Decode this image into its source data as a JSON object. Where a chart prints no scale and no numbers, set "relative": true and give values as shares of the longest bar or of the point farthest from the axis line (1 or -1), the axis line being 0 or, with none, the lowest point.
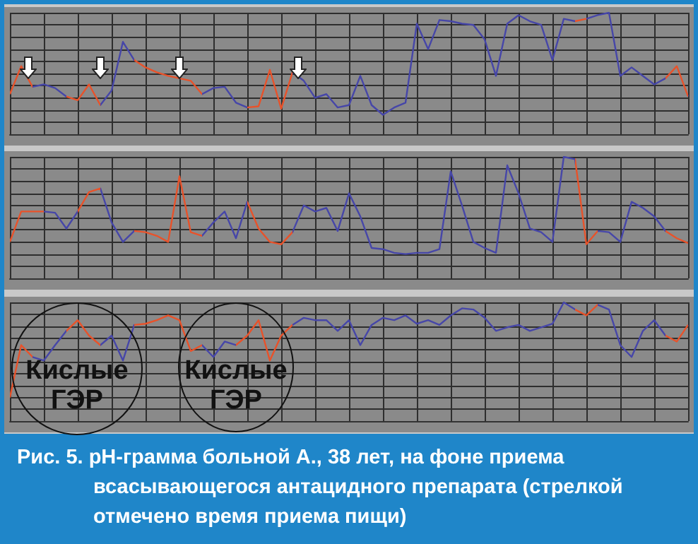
{
  "chart_data": [
    {
      "type": "line",
      "relative": true,
      "grid": true,
      "categories": [
        null,
        null,
        null,
        null,
        null,
        null,
        null,
        null,
        null,
        null,
        null,
        null,
        null,
        null,
        null,
        null,
        null,
        null,
        null,
        null,
        null,
        null,
        null,
        null,
        null,
        null,
        null,
        null,
        null,
        null,
        null,
        null,
        null,
        null,
        null,
        null,
        null,
        null,
        null,
        null,
        null,
        null,
        null,
        null,
        null,
        null,
        null,
        null,
        null,
        null,
        null,
        null,
        null,
        null,
        null,
        null,
        null,
        null,
        null,
        null,
        null
      ],
      "series": [
        {
          "color": "#4646a8",
          "values": [
            0.33,
            0.56,
            0.39,
            0.41,
            0.38,
            0.31,
            0.28,
            0.41,
            0.24,
            0.36,
            0.76,
            0.61,
            0.55,
            0.51,
            0.48,
            0.46,
            0.44,
            0.33,
            0.38,
            0.39,
            0.26,
            0.22,
            0.23,
            0.53,
            0.21,
            0.51,
            0.44,
            0.3,
            0.33,
            0.22,
            0.24,
            0.48,
            0.24,
            0.16,
            0.22,
            0.26,
            0.91,
            0.7,
            0.94,
            0.93,
            0.91,
            0.9,
            0.78,
            0.48,
            0.91,
            0.98,
            0.93,
            0.9,
            0.61,
            0.95,
            0.93,
            0.95,
            0.98,
            1,
            0.48,
            0.55,
            0.48,
            0.41,
            0.46,
            0.56,
            0.31
          ],
          "colors": [
            "#e8522a",
            "#e8522a",
            null,
            null,
            null,
            "#e8522a",
            "#e8522a",
            "#e8522a",
            null,
            null,
            null,
            "#e8522a",
            "#e8522a",
            "#e8522a",
            "#e8522a",
            "#e8522a",
            "#e8522a",
            null,
            null,
            null,
            null,
            "#e8522a",
            "#e8522a",
            "#e8522a",
            "#e8522a",
            null,
            null,
            null,
            null,
            null,
            null,
            null,
            null,
            null,
            null,
            null,
            null,
            null,
            null,
            null,
            null,
            null,
            null,
            null,
            null,
            null,
            null,
            null,
            null,
            null,
            "#e8522a",
            null,
            null,
            null,
            null,
            null,
            null,
            null,
            "#e8522a",
            "#e8522a",
            null
          ]
        }
      ]
    },
    {
      "type": "line",
      "relative": true,
      "grid": true,
      "categories": [
        null,
        null,
        null,
        null,
        null,
        null,
        null,
        null,
        null,
        null,
        null,
        null,
        null,
        null,
        null,
        null,
        null,
        null,
        null,
        null,
        null,
        null,
        null,
        null,
        null,
        null,
        null,
        null,
        null,
        null,
        null,
        null,
        null,
        null,
        null,
        null,
        null,
        null,
        null,
        null,
        null,
        null,
        null,
        null,
        null,
        null,
        null,
        null,
        null,
        null,
        null,
        null,
        null,
        null,
        null,
        null,
        null,
        null,
        null,
        null,
        null
      ],
      "series": [
        {
          "color": "#4646a8",
          "values": [
            0.3,
            0.55,
            0.55,
            0.55,
            0.54,
            0.41,
            0.55,
            0.71,
            0.74,
            0.46,
            0.3,
            0.39,
            0.38,
            0.35,
            0.3,
            0.84,
            0.38,
            0.35,
            0.46,
            0.55,
            0.33,
            0.63,
            0.41,
            0.3,
            0.28,
            0.38,
            0.6,
            0.55,
            0.58,
            0.39,
            0.7,
            0.51,
            0.25,
            0.24,
            0.21,
            0.2,
            0.21,
            0.21,
            0.24,
            0.88,
            0.6,
            0.3,
            0.25,
            0.21,
            0.93,
            0.7,
            0.41,
            0.38,
            0.3,
            1,
            0.98,
            0.28,
            0.39,
            0.38,
            0.3,
            0.63,
            0.58,
            0.51,
            0.39,
            0.33,
            0.29
          ],
          "colors": [
            "#e8522a",
            "#e8522a",
            "#e8522a",
            null,
            null,
            null,
            "#e8522a",
            "#e8522a",
            null,
            null,
            null,
            "#e8522a",
            "#e8522a",
            "#e8522a",
            "#e8522a",
            "#e8522a",
            "#e8522a",
            null,
            null,
            null,
            null,
            "#e8522a",
            "#e8522a",
            "#e8522a",
            "#e8522a",
            null,
            null,
            null,
            null,
            null,
            null,
            null,
            null,
            null,
            null,
            null,
            null,
            null,
            null,
            null,
            null,
            null,
            null,
            null,
            null,
            null,
            null,
            null,
            null,
            null,
            "#e8522a",
            "#e8522a",
            null,
            null,
            null,
            null,
            null,
            null,
            "#e8522a",
            "#e8522a",
            null
          ]
        }
      ]
    },
    {
      "type": "line",
      "relative": true,
      "grid": true,
      "categories": [
        null,
        null,
        null,
        null,
        null,
        null,
        null,
        null,
        null,
        null,
        null,
        null,
        null,
        null,
        null,
        null,
        null,
        null,
        null,
        null,
        null,
        null,
        null,
        null,
        null,
        null,
        null,
        null,
        null,
        null,
        null,
        null,
        null,
        null,
        null,
        null,
        null,
        null,
        null,
        null,
        null,
        null,
        null,
        null,
        null,
        null,
        null,
        null,
        null,
        null,
        null,
        null,
        null,
        null,
        null,
        null,
        null,
        null,
        null,
        null,
        null
      ],
      "series": [
        {
          "color": "#4646a8",
          "values": [
            0.2,
            0.64,
            0.54,
            0.51,
            0.64,
            0.76,
            0.85,
            0.72,
            0.64,
            0.72,
            0.51,
            0.81,
            0.82,
            0.85,
            0.89,
            0.85,
            0.59,
            0.64,
            0.54,
            0.67,
            0.64,
            0.72,
            0.85,
            0.51,
            0.72,
            0.81,
            0.87,
            0.85,
            0.85,
            0.76,
            0.85,
            0.64,
            0.81,
            0.87,
            0.85,
            0.89,
            0.82,
            0.85,
            0.81,
            0.89,
            0.95,
            0.94,
            0.87,
            0.76,
            0.79,
            0.81,
            0.76,
            0.79,
            0.82,
            1,
            0.94,
            0.89,
            0.98,
            0.94,
            0.64,
            0.54,
            0.76,
            0.85,
            0.72,
            0.67,
            0.81
          ],
          "colors": [
            "#e8522a",
            "#e8522a",
            null,
            null,
            null,
            "#e8522a",
            "#e8522a",
            "#e8522a",
            null,
            null,
            null,
            "#e8522a",
            "#e8522a",
            "#e8522a",
            "#e8522a",
            "#e8522a",
            "#e8522a",
            null,
            null,
            null,
            "#e8522a",
            "#e8522a",
            "#e8522a",
            "#e8522a",
            "#e8522a",
            null,
            null,
            null,
            null,
            null,
            null,
            null,
            null,
            null,
            null,
            null,
            null,
            null,
            null,
            null,
            null,
            null,
            null,
            null,
            null,
            null,
            null,
            null,
            null,
            null,
            "#e8522a",
            "#e8522a",
            null,
            null,
            null,
            null,
            null,
            null,
            "#e8522a",
            "#e8522a",
            null
          ]
        }
      ],
      "annotations": [
        "Кислые ГЭР",
        "Кислые ГЭР",
        "Рис. 5. pH-грамма больной А., 38 лет, на фоне приема всасывающегося антацидного препарата (стрелкой отмечено время приема пищи)"
      ]
    }
  ]
}
